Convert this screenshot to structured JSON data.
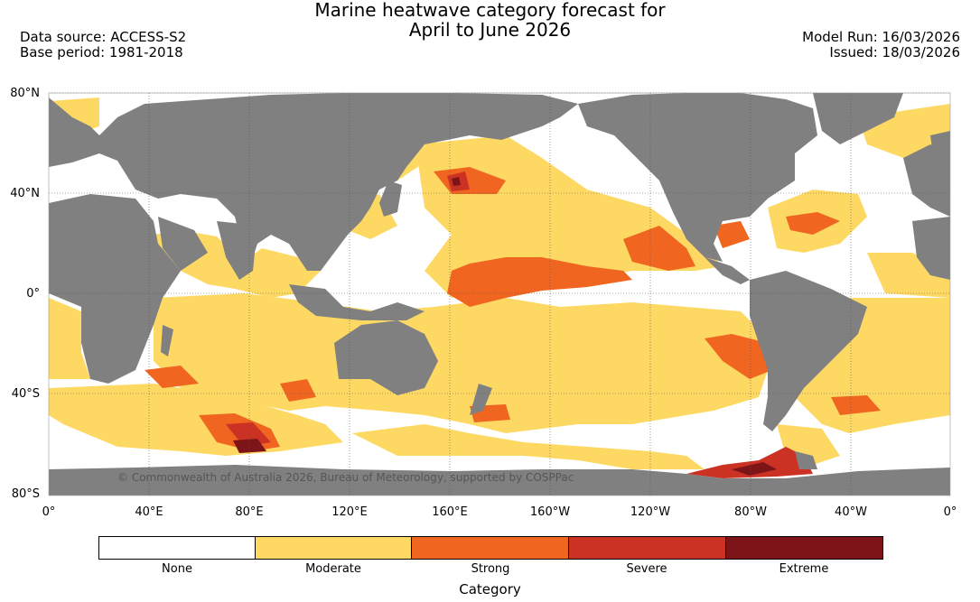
{
  "title_line1": "Marine heatwave category forecast for",
  "title_line2": "April to June 2026",
  "data_source": "Data source: ACCESS-S2",
  "base_period": "Base period: 1981-2018",
  "model_run": "Model Run: 16/03/2026",
  "issued": "Issued: 18/03/2026",
  "lat_labels": [
    "80°N",
    "40°N",
    "0°",
    "40°S",
    "80°S"
  ],
  "lon_labels": [
    "0°",
    "40°E",
    "80°E",
    "120°E",
    "160°E",
    "160°W",
    "120°W",
    "80°W",
    "40°W",
    "0°"
  ],
  "copyright": "© Commonwealth of Australia 2026, Bureau of Meteorology, supported by COSPPac",
  "colorbar": {
    "title": "Category",
    "categories": [
      {
        "label": "None",
        "color": "#ffffff"
      },
      {
        "label": "Moderate",
        "color": "#fdd964"
      },
      {
        "label": "Strong",
        "color": "#f0651f"
      },
      {
        "label": "Severe",
        "color": "#cc3224"
      },
      {
        "label": "Extreme",
        "color": "#7c1418"
      }
    ]
  },
  "colors": {
    "land": "#808080",
    "grid": "#555555"
  }
}
